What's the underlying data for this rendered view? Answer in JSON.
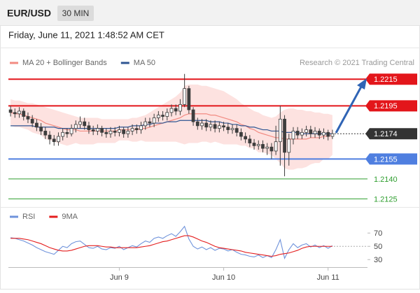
{
  "header": {
    "symbol": "EUR/USD",
    "interval": "30 MIN",
    "timestamp": "Friday, June 11, 2021 1:48:52 AM CET"
  },
  "chart_data": [
    {
      "type": "candlestick",
      "credit": "Research © 2021 Trading Central",
      "categories": [
        null,
        null,
        null,
        null,
        null,
        null,
        null,
        null,
        null,
        null,
        null,
        null,
        null,
        null,
        null,
        null,
        null,
        null,
        null,
        null,
        null,
        null,
        null,
        null,
        null,
        "Jun 9",
        null,
        null,
        null,
        null,
        null,
        null,
        null,
        null,
        null,
        null,
        null,
        null,
        null,
        null,
        null,
        null,
        null,
        null,
        null,
        null,
        null,
        null,
        null,
        "Jun 10",
        null,
        null,
        null,
        null,
        null,
        null,
        null,
        null,
        null,
        null,
        null,
        null,
        null,
        null,
        null,
        null,
        null,
        null,
        null,
        null,
        null,
        null,
        null,
        "Jun 11",
        null
      ],
      "open": [
        1.2192,
        1.219,
        1.2189,
        1.2191,
        1.2187,
        1.2185,
        1.2182,
        1.2179,
        1.2176,
        1.2173,
        1.217,
        1.2168,
        1.2172,
        1.2175,
        1.2174,
        1.2178,
        1.2181,
        1.2183,
        1.218,
        1.2177,
        1.2176,
        1.2178,
        1.2175,
        1.2174,
        1.2176,
        1.2175,
        1.2177,
        1.2174,
        1.2176,
        1.2178,
        1.2177,
        1.218,
        1.2183,
        1.2182,
        1.2186,
        1.2188,
        1.2187,
        1.219,
        1.2193,
        1.2191,
        1.2196,
        1.2208,
        1.2192,
        1.2183,
        1.218,
        1.2182,
        1.2179,
        1.2181,
        1.2178,
        1.218,
        1.2179,
        1.2177,
        1.2178,
        1.2175,
        1.2172,
        1.217,
        1.2167,
        1.2165,
        1.2166,
        1.2163,
        1.2164,
        1.2161,
        1.2168,
        1.2185,
        1.216,
        1.217,
        1.2176,
        1.2173,
        1.2175,
        1.2177,
        1.2174,
        1.2176,
        1.2173,
        1.2175,
        1.2172
      ],
      "high": [
        1.2195,
        1.2193,
        1.2194,
        1.2193,
        1.219,
        1.2188,
        1.2185,
        1.2182,
        1.2179,
        1.2176,
        1.2173,
        1.2175,
        1.2178,
        1.2178,
        1.2181,
        1.2184,
        1.2187,
        1.2186,
        1.2183,
        1.218,
        1.2181,
        1.218,
        1.2178,
        1.2179,
        1.2179,
        1.218,
        1.2179,
        1.2179,
        1.2181,
        1.2181,
        1.2183,
        1.2186,
        1.2186,
        1.2189,
        1.2191,
        1.2191,
        1.2193,
        1.2196,
        1.2196,
        1.22,
        1.2219,
        1.221,
        1.2194,
        1.2186,
        1.2185,
        1.2185,
        1.2184,
        1.2184,
        1.2183,
        1.2183,
        1.2182,
        1.2181,
        1.2181,
        1.2178,
        1.2175,
        1.2173,
        1.217,
        1.2169,
        1.2169,
        1.2167,
        1.2167,
        1.218,
        1.2195,
        1.2188,
        1.2174,
        1.2179,
        1.2179,
        1.2178,
        1.218,
        1.218,
        1.2179,
        1.2178,
        1.2178,
        1.2177,
        1.2177
      ],
      "low": [
        1.2187,
        1.2186,
        1.2186,
        1.2184,
        1.2182,
        1.2179,
        1.2176,
        1.2173,
        1.217,
        1.2166,
        1.2165,
        1.2165,
        1.2169,
        1.2171,
        1.2172,
        1.2175,
        1.2178,
        1.2177,
        1.2174,
        1.2173,
        1.2173,
        1.2172,
        1.2171,
        1.2171,
        1.2172,
        1.2172,
        1.2171,
        1.2171,
        1.2173,
        1.2174,
        1.2174,
        1.2177,
        1.2179,
        1.2179,
        1.2183,
        1.2184,
        1.2184,
        1.2187,
        1.2188,
        1.2188,
        1.2194,
        1.2189,
        1.218,
        1.2177,
        1.2177,
        1.2176,
        1.2176,
        1.2175,
        1.2175,
        1.2176,
        1.2174,
        1.2174,
        1.2172,
        1.2169,
        1.2167,
        1.2164,
        1.2162,
        1.2162,
        1.216,
        1.2158,
        1.2155,
        1.2158,
        1.215,
        1.2142,
        1.215,
        1.2166,
        1.217,
        1.217,
        1.2172,
        1.2171,
        1.2171,
        1.217,
        1.217,
        1.2169,
        1.217
      ],
      "close": [
        1.219,
        1.2189,
        1.2191,
        1.2187,
        1.2185,
        1.2182,
        1.2179,
        1.2176,
        1.2173,
        1.217,
        1.2168,
        1.2172,
        1.2175,
        1.2174,
        1.2178,
        1.2181,
        1.2183,
        1.218,
        1.2177,
        1.2176,
        1.2178,
        1.2175,
        1.2174,
        1.2176,
        1.2175,
        1.2177,
        1.2174,
        1.2176,
        1.2178,
        1.2177,
        1.218,
        1.2183,
        1.2182,
        1.2186,
        1.2188,
        1.2187,
        1.219,
        1.2193,
        1.2191,
        1.2196,
        1.2208,
        1.2192,
        1.2183,
        1.218,
        1.2182,
        1.2179,
        1.2181,
        1.2178,
        1.218,
        1.2179,
        1.2177,
        1.2178,
        1.2175,
        1.2172,
        1.217,
        1.2167,
        1.2165,
        1.2166,
        1.2163,
        1.2164,
        1.2161,
        1.2168,
        1.2185,
        1.216,
        1.217,
        1.2176,
        1.2173,
        1.2175,
        1.2177,
        1.2174,
        1.2176,
        1.2173,
        1.2175,
        1.2172,
        1.2174
      ],
      "candle_color": "#3d3d3d",
      "ylim": [
        1.2121,
        1.2222
      ],
      "series": [
        {
          "name": "MA 20 + Bollinger Bands",
          "color": "#f28b82",
          "band_color": "#fde2e0",
          "values": [
            1.219,
            1.2189,
            1.2189,
            1.2188,
            1.2187,
            1.2186,
            1.2185,
            1.2184,
            1.2182,
            1.2181,
            1.218,
            1.2179,
            1.2178,
            1.2177,
            1.2177,
            1.2177,
            1.2176,
            1.2176,
            1.2176,
            1.2176,
            1.2176,
            1.2176,
            1.2176,
            1.2176,
            1.2176,
            1.2177,
            1.2177,
            1.2177,
            1.2177,
            1.2177,
            1.2178,
            1.2178,
            1.2179,
            1.218,
            1.2181,
            1.2182,
            1.2183,
            1.2184,
            1.2185,
            1.2186,
            1.2188,
            1.2189,
            1.2189,
            1.2189,
            1.2189,
            1.2189,
            1.2188,
            1.2188,
            1.2187,
            1.2186,
            1.2185,
            1.2184,
            1.2183,
            1.2181,
            1.218,
            1.2178,
            1.2177,
            1.2175,
            1.2174,
            1.2173,
            1.2172,
            1.2171,
            1.2171,
            1.217,
            1.217,
            1.217,
            1.217,
            1.217,
            1.217,
            1.2171,
            1.2171,
            1.2171,
            1.2172,
            1.2172,
            1.2173
          ],
          "upper": [
            1.22,
            1.2199,
            1.2199,
            1.2198,
            1.2197,
            1.2197,
            1.2196,
            1.2195,
            1.2194,
            1.2193,
            1.2192,
            1.2191,
            1.219,
            1.2189,
            1.2188,
            1.2187,
            1.2186,
            1.2186,
            1.2186,
            1.2186,
            1.2186,
            1.2185,
            1.2185,
            1.2185,
            1.2185,
            1.2185,
            1.2185,
            1.2185,
            1.2186,
            1.2186,
            1.2187,
            1.2188,
            1.219,
            1.2192,
            1.2194,
            1.2196,
            1.2198,
            1.22,
            1.2202,
            1.2205,
            1.221,
            1.2211,
            1.2211,
            1.2211,
            1.221,
            1.221,
            1.2209,
            1.2208,
            1.2207,
            1.2206,
            1.2204,
            1.2202,
            1.22,
            1.2197,
            1.2195,
            1.2193,
            1.2191,
            1.219,
            1.2188,
            1.2187,
            1.2186,
            1.2187,
            1.219,
            1.2192,
            1.2193,
            1.2193,
            1.2192,
            1.2192,
            1.2191,
            1.2191,
            1.219,
            1.219,
            1.2189,
            1.2189,
            1.2188
          ],
          "lower": [
            1.218,
            1.2179,
            1.2179,
            1.2178,
            1.2177,
            1.2175,
            1.2174,
            1.2173,
            1.217,
            1.2169,
            1.2168,
            1.2167,
            1.2166,
            1.2165,
            1.2166,
            1.2167,
            1.2166,
            1.2166,
            1.2166,
            1.2166,
            1.2167,
            1.2167,
            1.2167,
            1.2167,
            1.2167,
            1.2169,
            1.2169,
            1.2169,
            1.2168,
            1.2168,
            1.2169,
            1.2168,
            1.2168,
            1.2168,
            1.2168,
            1.2168,
            1.2168,
            1.2168,
            1.2168,
            1.2167,
            1.2166,
            1.2167,
            1.2167,
            1.2167,
            1.2168,
            1.2168,
            1.2167,
            1.2168,
            1.2167,
            1.2166,
            1.2166,
            1.2166,
            1.2166,
            1.2165,
            1.2165,
            1.2163,
            1.2163,
            1.216,
            1.216,
            1.2159,
            1.2158,
            1.2155,
            1.2152,
            1.2148,
            1.2147,
            1.2147,
            1.2148,
            1.2148,
            1.2149,
            1.2151,
            1.2152,
            1.2152,
            1.2155,
            1.2155,
            1.2158
          ]
        },
        {
          "name": "MA 50",
          "color": "#2e5592",
          "values": [
            1.218,
            1.218,
            1.218,
            1.218,
            1.218,
            1.218,
            1.2179,
            1.2179,
            1.2179,
            1.2179,
            1.2179,
            1.2178,
            1.2178,
            1.2178,
            1.2178,
            1.2178,
            1.2178,
            1.2178,
            1.2178,
            1.2178,
            1.2178,
            1.2178,
            1.2178,
            1.2178,
            1.2178,
            1.2179,
            1.2179,
            1.2179,
            1.218,
            1.218,
            1.218,
            1.2181,
            1.2181,
            1.2182,
            1.2182,
            1.2182,
            1.2183,
            1.2183,
            1.2183,
            1.2184,
            1.2184,
            1.2184,
            1.2184,
            1.2184,
            1.2184,
            1.2184,
            1.2183,
            1.2183,
            1.2183,
            1.2182,
            1.2182,
            1.2181,
            1.2181,
            1.218,
            1.218,
            1.2179,
            1.2179,
            1.2178,
            1.2177,
            1.2177,
            1.2176,
            1.2176,
            1.2176,
            1.2175,
            1.2175,
            1.2175,
            1.2175,
            1.2174,
            1.2174,
            1.2174,
            1.2174,
            1.2174,
            1.2174,
            1.2174,
            1.2174
          ]
        }
      ],
      "levels": [
        {
          "value": 1.2215,
          "color": "#e3161b",
          "box": true
        },
        {
          "value": 1.2195,
          "color": "#e3161b",
          "box": true
        },
        {
          "value": 1.2174,
          "color": "#333333",
          "box": true,
          "dotted": true
        },
        {
          "value": 1.2155,
          "color": "#4f7fe0",
          "box": true
        },
        {
          "value": 1.214,
          "label": "1.2140",
          "color": "#2f9e2f",
          "box": false
        },
        {
          "value": 1.2125,
          "color": "#2f9e2f",
          "box": false
        }
      ]
    },
    {
      "type": "line",
      "series": [
        {
          "name": "RSI",
          "color": "#6f93db",
          "values": [
            63,
            62,
            60,
            58,
            55,
            52,
            48,
            45,
            42,
            40,
            38,
            44,
            50,
            48,
            54,
            57,
            58,
            53,
            48,
            47,
            50,
            46,
            45,
            48,
            47,
            50,
            45,
            48,
            51,
            49,
            54,
            58,
            56,
            62,
            64,
            62,
            66,
            69,
            65,
            72,
            80,
            61,
            50,
            46,
            49,
            45,
            48,
            44,
            47,
            46,
            43,
            45,
            41,
            38,
            37,
            35,
            34,
            37,
            33,
            36,
            33,
            45,
            60,
            32,
            45,
            54,
            48,
            52,
            54,
            49,
            52,
            48,
            51,
            47,
            51
          ]
        },
        {
          "name": "9MA",
          "color": "#e41e1e",
          "values": [
            62,
            62,
            62,
            61,
            60,
            58,
            56,
            54,
            51,
            48,
            46,
            44,
            43,
            43,
            44,
            46,
            48,
            50,
            51,
            51,
            51,
            50,
            49,
            49,
            48,
            48,
            48,
            48,
            48,
            48,
            49,
            50,
            51,
            53,
            55,
            57,
            58,
            60,
            62,
            64,
            66,
            66,
            64,
            61,
            58,
            56,
            53,
            50,
            48,
            47,
            46,
            45,
            44,
            43,
            41,
            40,
            39,
            38,
            37,
            36,
            35,
            36,
            38,
            39,
            40,
            42,
            44,
            47,
            49,
            50,
            50,
            50,
            50,
            50,
            50
          ]
        }
      ],
      "ylim": [
        25,
        85
      ],
      "yticks": [
        70,
        50,
        30
      ]
    }
  ]
}
